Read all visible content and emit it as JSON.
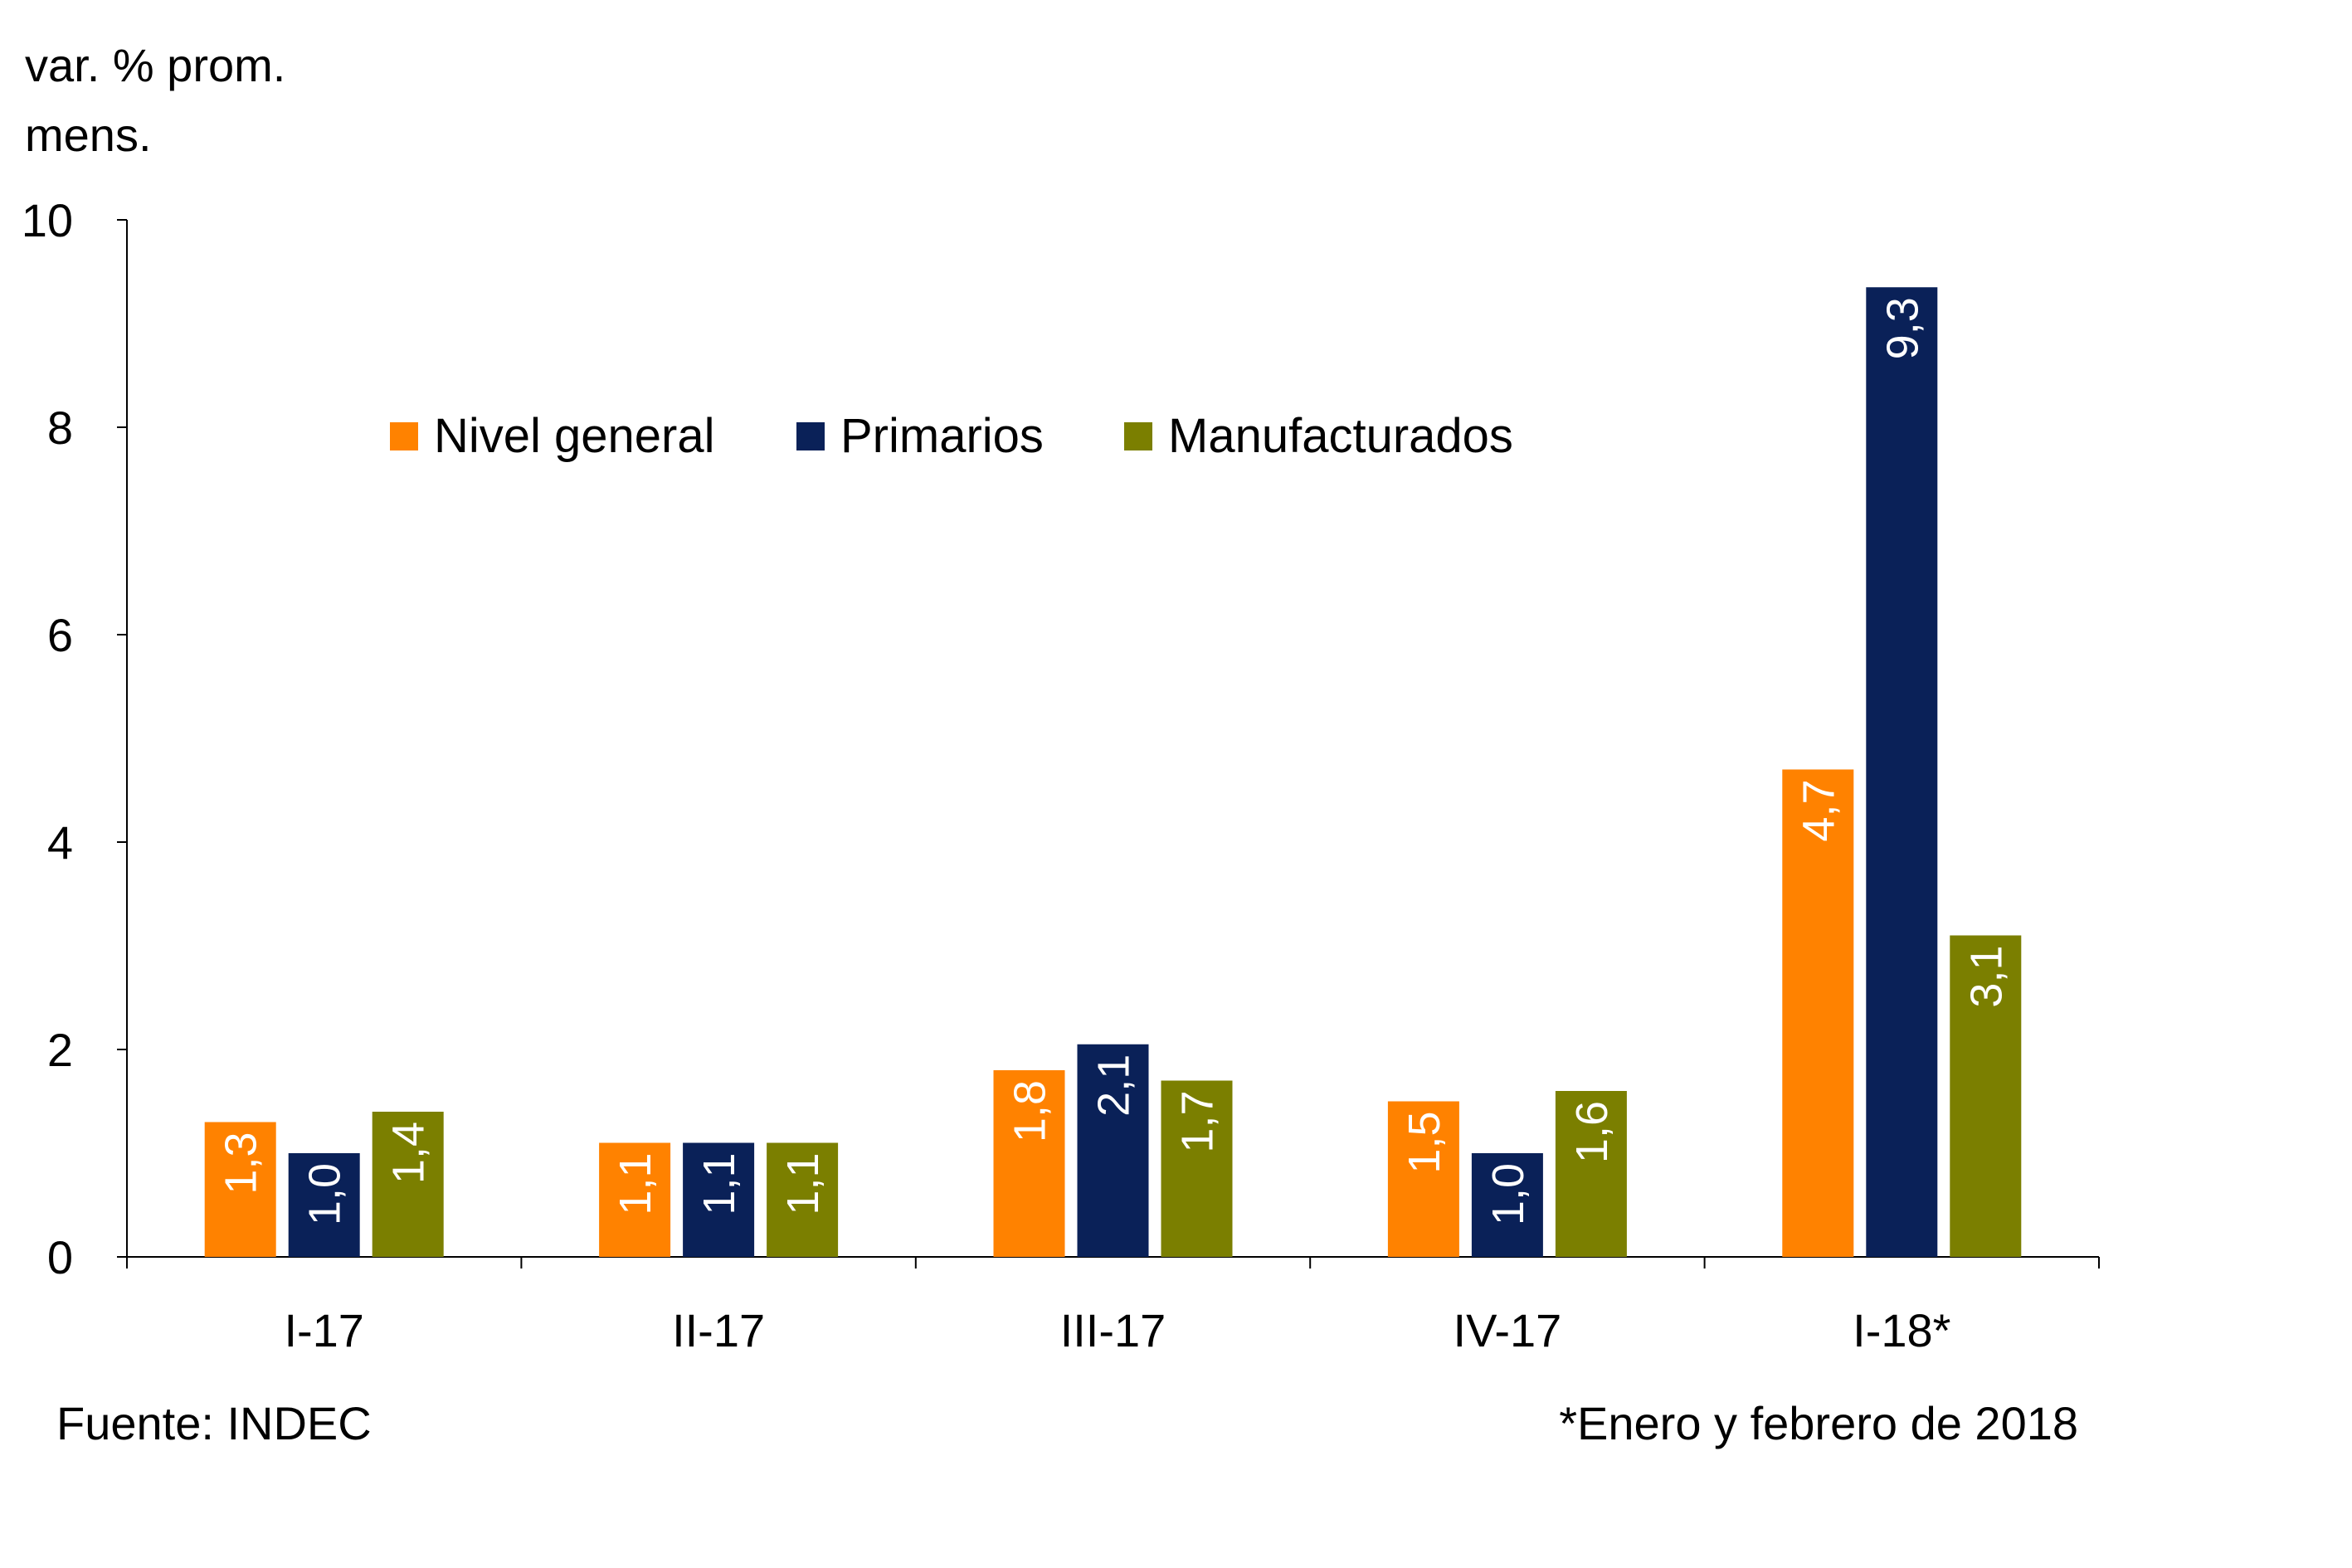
{
  "chart_data": {
    "type": "bar",
    "ylabel_lines": [
      "var. % prom.",
      "mens."
    ],
    "categories": [
      "I-17",
      "II-17",
      "III-17",
      "IV-17",
      "I-18*"
    ],
    "series": [
      {
        "name": "Nivel general",
        "color": "#FF8200",
        "values": [
          1.3,
          1.1,
          1.8,
          1.5,
          4.7
        ],
        "labels": [
          "1,3",
          "1,1",
          "1,8",
          "1,5",
          "4,7"
        ]
      },
      {
        "name": "Primarios",
        "color": "#0A2158",
        "values": [
          1.0,
          1.1,
          2.05,
          1.0,
          9.35
        ],
        "labels": [
          "1,0",
          "1,1",
          "2,1",
          "1,0",
          "9,3"
        ]
      },
      {
        "name": "Manufacturados",
        "color": "#7B7F00",
        "values": [
          1.4,
          1.1,
          1.7,
          1.6,
          3.1
        ],
        "labels": [
          "1,4",
          "1,1",
          "1,7",
          "1,6",
          "3,1"
        ]
      }
    ],
    "ylim": [
      0,
      10
    ],
    "yticks": [
      "0",
      "2",
      "4",
      "6",
      "8",
      "10"
    ],
    "legend_position": "top-center",
    "grid": false
  },
  "source_note": "Fuente: INDEC",
  "footnote": "*Enero y febrero de 2018"
}
